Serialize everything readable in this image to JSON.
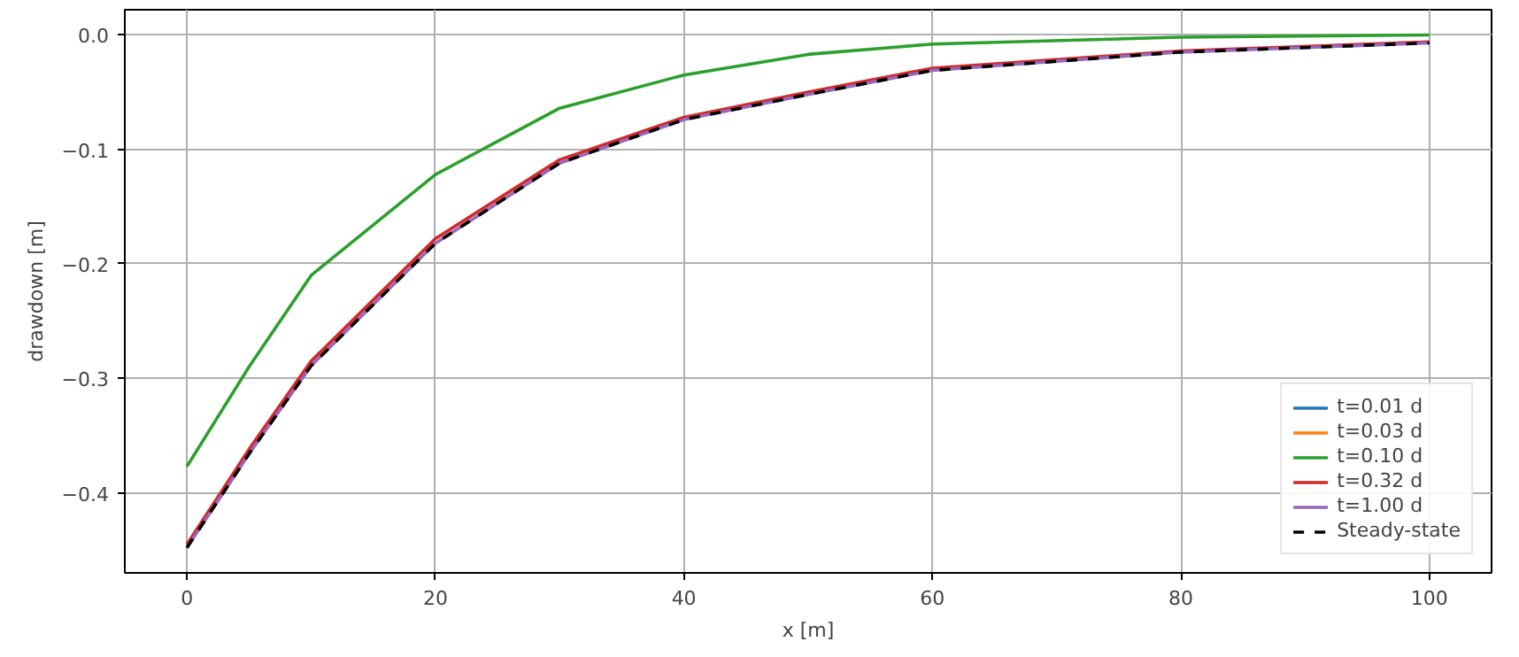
{
  "chart_data": {
    "type": "line",
    "xlabel": "x [m]",
    "ylabel": "drawdown [m]",
    "x": [
      0,
      5,
      10,
      20,
      30,
      40,
      50,
      60,
      80,
      100
    ],
    "series": [
      {
        "name": "t=0.01 d",
        "color": "#1f77b4",
        "values": [
          null,
          null,
          null,
          null,
          null,
          null,
          null,
          null,
          null,
          null
        ]
      },
      {
        "name": "t=0.03 d",
        "color": "#ff7f0e",
        "values": [
          null,
          null,
          null,
          null,
          null,
          null,
          null,
          null,
          null,
          null
        ]
      },
      {
        "name": "t=0.10 d",
        "color": "#2ca02c",
        "values": [
          -0.377,
          -0.29,
          -0.21,
          -0.122,
          -0.064,
          -0.035,
          -0.017,
          -0.008,
          -0.002,
          0.0
        ]
      },
      {
        "name": "t=0.32 d",
        "color": "#d62728",
        "values": [
          -0.445,
          -0.362,
          -0.285,
          -0.178,
          -0.109,
          -0.072,
          -0.05,
          -0.029,
          -0.014,
          -0.006
        ]
      },
      {
        "name": "t=1.00 d",
        "color": "#9467bd",
        "values": [
          -0.448,
          -0.366,
          -0.289,
          -0.182,
          -0.112,
          -0.074,
          -0.052,
          -0.031,
          -0.015,
          -0.007
        ]
      },
      {
        "name": "Steady-state",
        "color": "#000000",
        "line_style": "dashed",
        "values": [
          -0.448,
          -0.366,
          -0.289,
          -0.182,
          -0.112,
          -0.074,
          -0.052,
          -0.031,
          -0.015,
          -0.007
        ]
      }
    ],
    "xlim": [
      -5,
      105
    ],
    "ylim": [
      -0.47,
      0.022
    ],
    "xticks": [
      0,
      20,
      40,
      60,
      80,
      100
    ],
    "yticks": [
      {
        "value": 0.0,
        "label": "0.0"
      },
      {
        "value": -0.1,
        "label": "−0.1"
      },
      {
        "value": -0.2,
        "label": "−0.2"
      },
      {
        "value": -0.3,
        "label": "−0.3"
      },
      {
        "value": -0.4,
        "label": "−0.4"
      }
    ],
    "grid": true,
    "legend": "bottom right",
    "line_style": "solid"
  }
}
